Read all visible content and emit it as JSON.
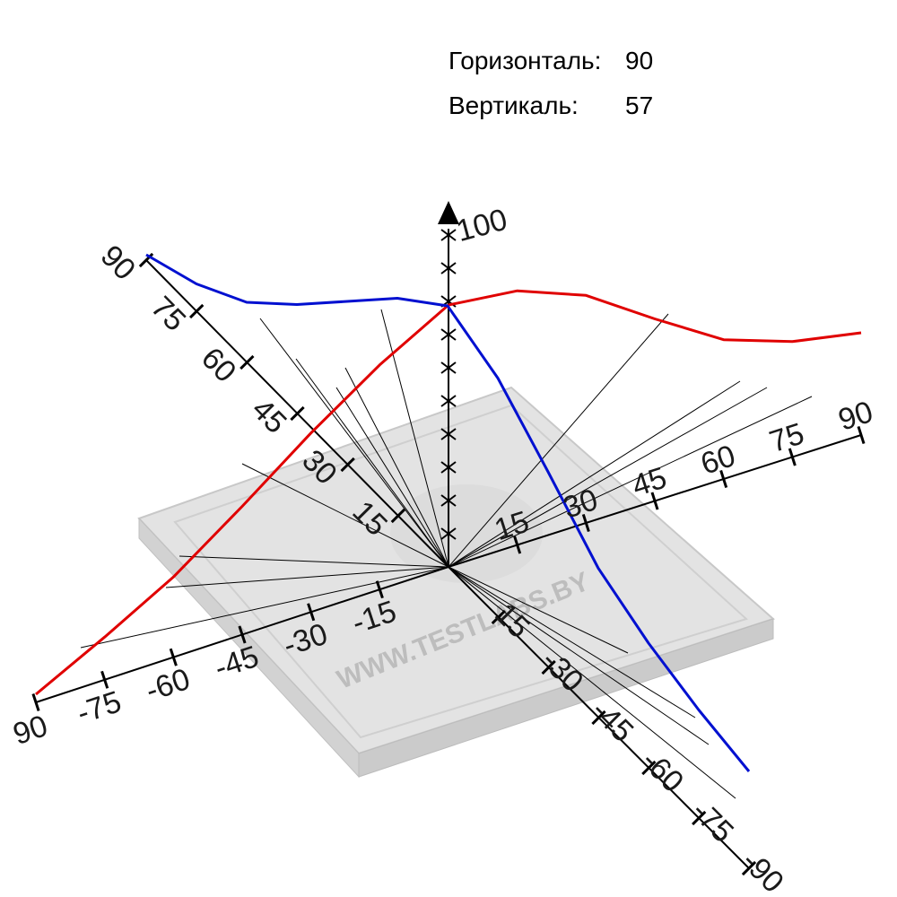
{
  "readouts": {
    "horizontal_label": "Горизонталь:",
    "horizontal_value": "90",
    "vertical_label": "Вертикаль:",
    "vertical_value": "57"
  },
  "watermark": "WWW.TESTLABS.BY",
  "chart_data": {
    "type": "line",
    "title": "",
    "projection": "3d-polar",
    "z_axis": {
      "max_label": "100",
      "range": [
        0,
        100
      ]
    },
    "axes": [
      {
        "name": "left-axis",
        "tick_labels": [
          "15",
          "30",
          "45",
          "60",
          "75",
          "90"
        ]
      },
      {
        "name": "right-axis",
        "tick_labels": [
          "15",
          "30",
          "45",
          "60",
          "75",
          "90"
        ]
      },
      {
        "name": "front-left-axis",
        "tick_labels": [
          "-15",
          "-30",
          "-45",
          "-60",
          "-75",
          "90"
        ]
      },
      {
        "name": "front-right-axis",
        "tick_labels": [
          "15",
          "-30",
          "-45",
          "-60",
          "-75",
          "-90"
        ]
      }
    ],
    "series": [
      {
        "color": "#e00000",
        "angles": [
          -90,
          -75,
          -60,
          -45,
          -30,
          -15,
          0,
          15,
          30,
          45,
          60,
          75,
          90
        ],
        "values": [
          3,
          16,
          30,
          48,
          67,
          84,
          98,
          95,
          85,
          68,
          52,
          43,
          38
        ]
      },
      {
        "color": "#0010d0",
        "angles": [
          -90,
          -75,
          -60,
          -45,
          -30,
          -15,
          0,
          15,
          30,
          45,
          60,
          75,
          90
        ],
        "values": [
          2,
          10,
          22,
          40,
          60,
          80,
          96,
          88,
          72,
          55,
          46,
          40,
          36
        ]
      }
    ]
  }
}
